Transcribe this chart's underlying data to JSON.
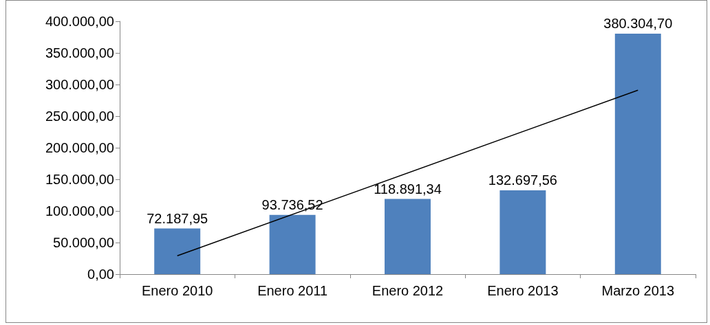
{
  "chart_data": {
    "type": "bar",
    "categories": [
      "Enero 2010",
      "Enero 2011",
      "Enero 2012",
      "Enero 2013",
      "Marzo 2013"
    ],
    "series": [
      {
        "color": "#4f81bd",
        "values": [
          72187.95,
          93736.52,
          118891.34,
          132697.56,
          380304.7
        ],
        "value_labels": [
          "72.187,95",
          "93.736,52",
          "118.891,34",
          "132.697,56",
          "380.304,70"
        ]
      },
      {
        "type": "line",
        "color": "#000000",
        "x": [
          "Enero 2010",
          "Marzo 2013"
        ],
        "values": [
          29000,
          291000
        ]
      }
    ],
    "ylim": [
      0,
      400000
    ],
    "yticks": [
      {
        "value": 0,
        "label": "0,00"
      },
      {
        "value": 50000,
        "label": "50.000,00"
      },
      {
        "value": 100000,
        "label": "100.000,00"
      },
      {
        "value": 150000,
        "label": "150.000,00"
      },
      {
        "value": 200000,
        "label": "200.000,00"
      },
      {
        "value": 250000,
        "label": "250.000,00"
      },
      {
        "value": 300000,
        "label": "300.000,00"
      },
      {
        "value": 350000,
        "label": "350.000,00"
      },
      {
        "value": 400000,
        "label": "400.000,00"
      }
    ],
    "grid": false,
    "marker": "none"
  }
}
